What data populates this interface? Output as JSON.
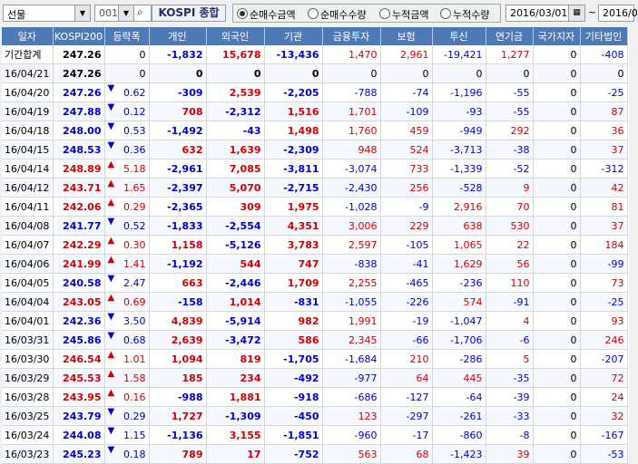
{
  "toolbar": {
    "market": "선물",
    "code": "001",
    "index_name": "KOSPI 종합",
    "radios": [
      {
        "label": "순매수금액",
        "selected": true
      },
      {
        "label": "순매수수량",
        "selected": false
      },
      {
        "label": "누적금액",
        "selected": false
      },
      {
        "label": "누적수량",
        "selected": false
      }
    ],
    "date_from": "2016/03/01",
    "date_sep": "~",
    "date_to": "2016/0"
  },
  "columns": [
    "일자",
    "KOSPI200",
    "등락폭",
    "개인",
    "외국인",
    "기관",
    "금융투자",
    "보험",
    "투신",
    "연기금",
    "국가지자",
    "기타법인"
  ],
  "rows": [
    {
      "date": "기간합계",
      "k200": "247.26",
      "dir": "",
      "chg": "0",
      "p": "-1,832",
      "f": "15,678",
      "i": "-13,436",
      "fi": "1,470",
      "ins": "2,961",
      "inv": "-19,421",
      "pen": "1,277",
      "gov": "0",
      "etc": "-408"
    },
    {
      "date": "16/04/21",
      "k200": "247.26",
      "dir": "",
      "chg": "0",
      "p": "0",
      "f": "0",
      "i": "0",
      "fi": "0",
      "ins": "0",
      "inv": "0",
      "pen": "0",
      "gov": "0",
      "etc": "0"
    },
    {
      "date": "16/04/20",
      "k200": "247.26",
      "dir": "down",
      "chg": "0.62",
      "p": "-309",
      "f": "2,539",
      "i": "-2,205",
      "fi": "-788",
      "ins": "-74",
      "inv": "-1,196",
      "pen": "-55",
      "gov": "0",
      "etc": "-25"
    },
    {
      "date": "16/04/19",
      "k200": "247.88",
      "dir": "down",
      "chg": "0.12",
      "p": "708",
      "f": "-2,312",
      "i": "1,516",
      "fi": "1,701",
      "ins": "-109",
      "inv": "-93",
      "pen": "-55",
      "gov": "0",
      "etc": "87"
    },
    {
      "date": "16/04/18",
      "k200": "248.00",
      "dir": "down",
      "chg": "0.53",
      "p": "-1,492",
      "f": "-43",
      "i": "1,498",
      "fi": "1,760",
      "ins": "459",
      "inv": "-949",
      "pen": "292",
      "gov": "0",
      "etc": "36"
    },
    {
      "date": "16/04/15",
      "k200": "248.53",
      "dir": "down",
      "chg": "0.36",
      "p": "632",
      "f": "1,639",
      "i": "-2,309",
      "fi": "948",
      "ins": "524",
      "inv": "-3,713",
      "pen": "-38",
      "gov": "0",
      "etc": "37"
    },
    {
      "date": "16/04/14",
      "k200": "248.89",
      "dir": "up",
      "chg": "5.18",
      "p": "-2,961",
      "f": "7,085",
      "i": "-3,811",
      "fi": "-3,074",
      "ins": "733",
      "inv": "-1,339",
      "pen": "-52",
      "gov": "0",
      "etc": "-312"
    },
    {
      "date": "16/04/12",
      "k200": "243.71",
      "dir": "up",
      "chg": "1.65",
      "p": "-2,397",
      "f": "5,070",
      "i": "-2,715",
      "fi": "-2,430",
      "ins": "256",
      "inv": "-528",
      "pen": "9",
      "gov": "0",
      "etc": "42"
    },
    {
      "date": "16/04/11",
      "k200": "242.06",
      "dir": "up",
      "chg": "0.29",
      "p": "-2,365",
      "f": "309",
      "i": "1,975",
      "fi": "-1,028",
      "ins": "-9",
      "inv": "2,916",
      "pen": "70",
      "gov": "0",
      "etc": "81"
    },
    {
      "date": "16/04/08",
      "k200": "241.77",
      "dir": "down",
      "chg": "0.52",
      "p": "-1,833",
      "f": "-2,554",
      "i": "4,351",
      "fi": "3,006",
      "ins": "229",
      "inv": "638",
      "pen": "530",
      "gov": "0",
      "etc": "37"
    },
    {
      "date": "16/04/07",
      "k200": "242.29",
      "dir": "up",
      "chg": "0.30",
      "p": "1,158",
      "f": "-5,126",
      "i": "3,783",
      "fi": "2,597",
      "ins": "-105",
      "inv": "1,065",
      "pen": "22",
      "gov": "0",
      "etc": "184"
    },
    {
      "date": "16/04/06",
      "k200": "241.99",
      "dir": "up",
      "chg": "1.41",
      "p": "-1,192",
      "f": "544",
      "i": "747",
      "fi": "-838",
      "ins": "-41",
      "inv": "1,629",
      "pen": "56",
      "gov": "0",
      "etc": "-99"
    },
    {
      "date": "16/04/05",
      "k200": "240.58",
      "dir": "down",
      "chg": "2.47",
      "p": "663",
      "f": "-2,446",
      "i": "1,709",
      "fi": "2,255",
      "ins": "-465",
      "inv": "-236",
      "pen": "110",
      "gov": "0",
      "etc": "73"
    },
    {
      "date": "16/04/04",
      "k200": "243.05",
      "dir": "up",
      "chg": "0.69",
      "p": "-158",
      "f": "1,014",
      "i": "-831",
      "fi": "-1,055",
      "ins": "-226",
      "inv": "574",
      "pen": "-91",
      "gov": "0",
      "etc": "-25"
    },
    {
      "date": "16/04/01",
      "k200": "242.36",
      "dir": "down",
      "chg": "3.50",
      "p": "4,839",
      "f": "-5,914",
      "i": "982",
      "fi": "1,991",
      "ins": "-19",
      "inv": "-1,047",
      "pen": "4",
      "gov": "0",
      "etc": "93"
    },
    {
      "date": "16/03/31",
      "k200": "245.86",
      "dir": "down",
      "chg": "0.68",
      "p": "2,639",
      "f": "-3,472",
      "i": "586",
      "fi": "2,345",
      "ins": "-66",
      "inv": "-1,706",
      "pen": "-6",
      "gov": "0",
      "etc": "246"
    },
    {
      "date": "16/03/30",
      "k200": "246.54",
      "dir": "up",
      "chg": "1.01",
      "p": "1,094",
      "f": "819",
      "i": "-1,705",
      "fi": "-1,684",
      "ins": "210",
      "inv": "-286",
      "pen": "5",
      "gov": "0",
      "etc": "-207"
    },
    {
      "date": "16/03/29",
      "k200": "245.53",
      "dir": "up",
      "chg": "1.58",
      "p": "185",
      "f": "234",
      "i": "-492",
      "fi": "-977",
      "ins": "64",
      "inv": "445",
      "pen": "-35",
      "gov": "0",
      "etc": "72"
    },
    {
      "date": "16/03/28",
      "k200": "243.95",
      "dir": "up",
      "chg": "0.16",
      "p": "-988",
      "f": "1,881",
      "i": "-918",
      "fi": "-686",
      "ins": "-127",
      "inv": "-64",
      "pen": "-39",
      "gov": "0",
      "etc": "24"
    },
    {
      "date": "16/03/25",
      "k200": "243.79",
      "dir": "down",
      "chg": "0.29",
      "p": "1,727",
      "f": "-1,309",
      "i": "-450",
      "fi": "123",
      "ins": "-297",
      "inv": "-261",
      "pen": "-33",
      "gov": "0",
      "etc": "32"
    },
    {
      "date": "16/03/24",
      "k200": "244.08",
      "dir": "down",
      "chg": "1.15",
      "p": "-1,136",
      "f": "3,155",
      "i": "-1,851",
      "fi": "-960",
      "ins": "-17",
      "inv": "-860",
      "pen": "-8",
      "gov": "0",
      "etc": "-167"
    },
    {
      "date": "16/03/23",
      "k200": "245.23",
      "dir": "down",
      "chg": "0.18",
      "p": "789",
      "f": "17",
      "i": "-752",
      "fi": "563",
      "ins": "68",
      "inv": "-1,423",
      "pen": "39",
      "gov": "0",
      "etc": "-53"
    }
  ],
  "colors": {
    "up": "#d40000",
    "down": "#0000c8",
    "header": "#4d7ab7"
  }
}
